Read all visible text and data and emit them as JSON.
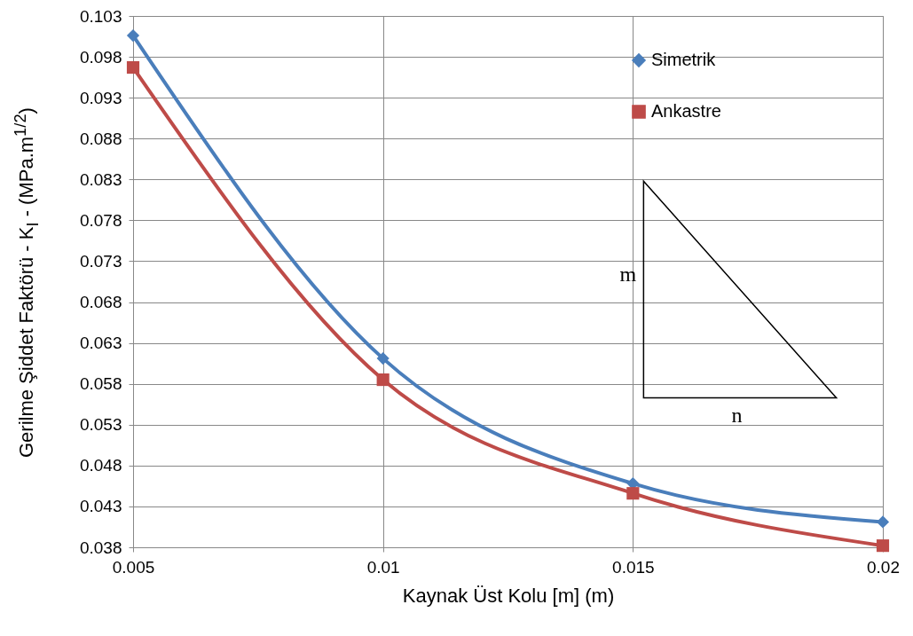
{
  "chart_data": {
    "type": "line",
    "xlabel": "Kaynak Üst Kolu [m] (m)",
    "ylabel": "Gerilme Şiddet Faktörü - K$_{I}$ - (MPa.m$^{1/2}$)",
    "x": [
      0.005,
      0.01,
      0.015,
      0.02
    ],
    "series": [
      {
        "name": "Simetrik",
        "color": "#4a7ebb",
        "marker": "diamond",
        "values": [
          0.1006,
          0.0611,
          0.0458,
          0.0411
        ]
      },
      {
        "name": "Ankastre",
        "color": "#be4b48",
        "marker": "square",
        "values": [
          0.0967,
          0.0585,
          0.0446,
          0.0382
        ]
      }
    ],
    "xlim": [
      0.005,
      0.02
    ],
    "xticks": [
      0.005,
      0.01,
      0.015,
      0.02
    ],
    "ylim": [
      0.038,
      0.103
    ],
    "yticks": [
      0.038,
      0.043,
      0.048,
      0.053,
      0.058,
      0.063,
      0.068,
      0.073,
      0.078,
      0.083,
      0.088,
      0.093,
      0.098,
      0.103
    ],
    "grid": true,
    "legend": "top right",
    "line_style": "solid",
    "annotations": [
      "m",
      "n"
    ]
  }
}
